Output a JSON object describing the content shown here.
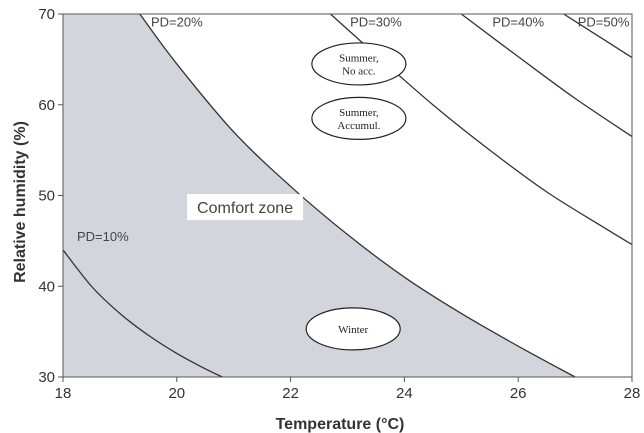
{
  "chart_data": {
    "type": "line",
    "title": "",
    "xlabel": "Temperature (°C)",
    "ylabel": "Relative humidity (%)",
    "xlim": [
      18,
      28
    ],
    "ylim": [
      30,
      70
    ],
    "xticks": [
      "18",
      "20",
      "22",
      "24",
      "26",
      "28"
    ],
    "yticks": [
      "30",
      "40",
      "50",
      "60",
      "70"
    ],
    "grid": false,
    "series": [
      {
        "name": "PD=10%",
        "x": [
          18.0,
          18.5,
          19.0,
          19.5,
          20.0,
          20.5,
          20.8
        ],
        "y": [
          44.0,
          40.0,
          37.0,
          34.6,
          32.6,
          30.9,
          30.0
        ]
      },
      {
        "name": "PD=20%",
        "x": [
          19.35,
          20.0,
          21.0,
          22.0,
          23.0,
          24.0,
          25.0,
          26.0,
          27.0
        ],
        "y": [
          70.0,
          64.5,
          57.0,
          51.0,
          45.7,
          41.0,
          37.0,
          33.4,
          30.0
        ]
      },
      {
        "name": "PD=30%",
        "x": [
          22.7,
          23.5,
          24.5,
          25.5,
          26.5,
          27.5,
          28.0
        ],
        "y": [
          70.0,
          65.5,
          60.0,
          55.0,
          50.4,
          46.5,
          44.6
        ]
      },
      {
        "name": "PD=40%",
        "x": [
          25.0,
          26.0,
          27.0,
          28.0
        ],
        "y": [
          70.0,
          65.3,
          60.7,
          56.5
        ]
      },
      {
        "name": "PD=50%",
        "x": [
          26.8,
          27.3,
          27.8,
          28.0
        ],
        "y": [
          70.0,
          68.0,
          66.0,
          65.2
        ]
      }
    ],
    "comfort_zone": {
      "label": "Comfort zone",
      "boundary_series": "PD=20%",
      "fill_color": "#d3d5dc"
    },
    "curve_label_positions": [
      {
        "text": "PD=10%",
        "x": 18.7,
        "y": 45.0
      },
      {
        "text": "PD=20%",
        "x": 20.0,
        "y": 68.6
      },
      {
        "text": "PD=30%",
        "x": 23.5,
        "y": 68.6
      },
      {
        "text": "PD=40%",
        "x": 26.0,
        "y": 68.6
      },
      {
        "text": "PD=50%",
        "x": 27.5,
        "y": 68.6
      }
    ],
    "annotations": [
      {
        "lines": [
          "Summer,",
          "No acc."
        ],
        "x": 23.2,
        "y": 64.5
      },
      {
        "lines": [
          "Summer,",
          "Accumul."
        ],
        "x": 23.2,
        "y": 58.5
      },
      {
        "lines": [
          "Winter"
        ],
        "x": 23.1,
        "y": 35.3
      }
    ],
    "zone_label_position": {
      "x": 21.2,
      "y": 48.5
    },
    "colors": {
      "curve": "#333333",
      "ellipse_fill": "#ffffff",
      "ellipse_stroke": "#222222"
    }
  }
}
